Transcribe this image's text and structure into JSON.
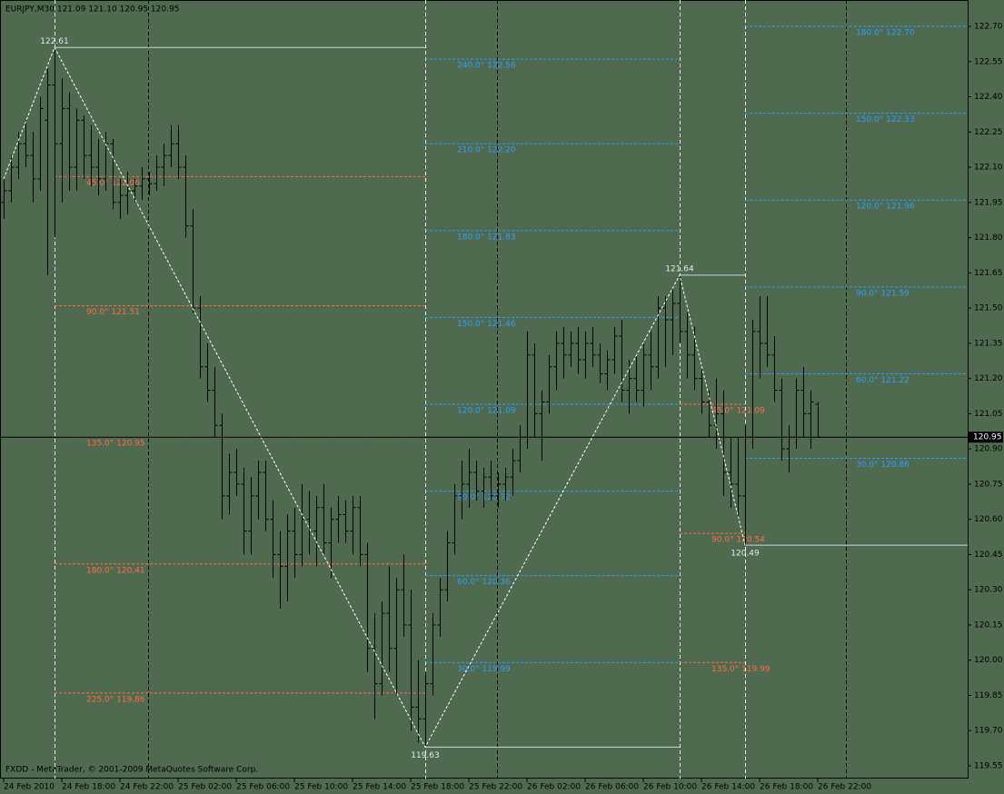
{
  "chart_data": {
    "type": "ohlc",
    "title": "EURJPY,M30  121.09 121.10 120.95 120.95",
    "footer": "FXDD - MetaTrader, © 2001-2009 MetaQuotes Software Corp.",
    "bar_color": "#000000",
    "categories": [
      "24 Feb 2010",
      null,
      null,
      null,
      null,
      null,
      null,
      null,
      "24 Feb 18:00",
      null,
      null,
      null,
      null,
      null,
      null,
      null,
      "24 Feb 22:00",
      null,
      null,
      null,
      null,
      null,
      null,
      null,
      "25 Feb 02:00",
      null,
      null,
      null,
      null,
      null,
      null,
      null,
      "25 Feb 06:00",
      null,
      null,
      null,
      null,
      null,
      null,
      null,
      "25 Feb 10:00",
      null,
      null,
      null,
      null,
      null,
      null,
      null,
      "25 Feb 14:00",
      null,
      null,
      null,
      null,
      null,
      null,
      null,
      "25 Feb 18:00",
      null,
      null,
      null,
      null,
      null,
      null,
      null,
      "25 Feb 22:00",
      null,
      null,
      null,
      null,
      null,
      null,
      null,
      "26 Feb 02:00",
      null,
      null,
      null,
      null,
      null,
      null,
      null,
      "26 Feb 06:00",
      null,
      null,
      null,
      null,
      null,
      null,
      null,
      "26 Feb 10:00",
      null,
      null,
      null,
      null,
      null,
      null,
      null,
      "26 Feb 14:00",
      null,
      null,
      null,
      null,
      null,
      null,
      null,
      "26 Feb 18:00",
      null,
      null,
      null,
      null,
      null,
      null,
      null,
      "26 Feb 22:00"
    ],
    "ohlc": [
      [
        121.95,
        122.05,
        121.88,
        122.0
      ],
      [
        122.0,
        122.15,
        121.95,
        122.1
      ],
      [
        122.1,
        122.25,
        122.05,
        122.2
      ],
      [
        122.2,
        122.3,
        122.1,
        122.15
      ],
      [
        122.15,
        122.25,
        121.95,
        122.05
      ],
      [
        122.05,
        122.4,
        122.0,
        122.35
      ],
      [
        122.3,
        122.52,
        121.64,
        122.45
      ],
      [
        122.45,
        122.61,
        121.8,
        122.2
      ],
      [
        122.2,
        122.48,
        121.95,
        122.35
      ],
      [
        122.35,
        122.42,
        122.0,
        122.1
      ],
      [
        122.1,
        122.35,
        122.0,
        122.3
      ],
      [
        122.3,
        122.32,
        122.05,
        122.15
      ],
      [
        122.15,
        122.28,
        122.02,
        122.1
      ],
      [
        122.1,
        122.22,
        121.98,
        122.05
      ],
      [
        122.05,
        122.25,
        122.0,
        122.2
      ],
      [
        122.2,
        122.22,
        121.92,
        121.95
      ],
      [
        121.95,
        122.05,
        121.88,
        121.98
      ],
      [
        121.98,
        122.08,
        121.9,
        122.0
      ],
      [
        122.0,
        122.05,
        121.95,
        122.02
      ],
      [
        122.02,
        122.1,
        121.96,
        122.05
      ],
      [
        122.05,
        122.08,
        121.98,
        122.03
      ],
      [
        122.03,
        122.15,
        122.0,
        122.1
      ],
      [
        122.1,
        122.2,
        122.02,
        122.15
      ],
      [
        122.15,
        122.28,
        122.1,
        122.2
      ],
      [
        122.2,
        122.28,
        122.05,
        122.1
      ],
      [
        122.1,
        122.15,
        121.8,
        121.85
      ],
      [
        121.85,
        121.92,
        121.48,
        121.5
      ],
      [
        121.5,
        121.55,
        121.2,
        121.25
      ],
      [
        121.25,
        121.35,
        121.1,
        121.15
      ],
      [
        121.15,
        121.25,
        120.95,
        121.0
      ],
      [
        121.0,
        121.05,
        120.6,
        120.7
      ],
      [
        120.7,
        120.88,
        120.62,
        120.8
      ],
      [
        120.8,
        120.9,
        120.7,
        120.75
      ],
      [
        120.75,
        120.82,
        120.45,
        120.55
      ],
      [
        120.55,
        120.78,
        120.45,
        120.7
      ],
      [
        120.7,
        120.85,
        120.6,
        120.8
      ],
      [
        120.8,
        120.85,
        120.55,
        120.6
      ],
      [
        120.6,
        120.68,
        120.35,
        120.45
      ],
      [
        120.45,
        120.55,
        120.22,
        120.4
      ],
      [
        120.4,
        120.62,
        120.25,
        120.55
      ],
      [
        120.55,
        120.65,
        120.35,
        120.45
      ],
      [
        120.45,
        120.75,
        120.4,
        120.6
      ],
      [
        120.6,
        120.72,
        120.45,
        120.55
      ],
      [
        120.55,
        120.7,
        120.4,
        120.65
      ],
      [
        120.65,
        120.75,
        120.45,
        120.5
      ],
      [
        120.5,
        120.65,
        120.35,
        120.6
      ],
      [
        120.6,
        120.7,
        120.5,
        120.62
      ],
      [
        120.62,
        120.68,
        120.5,
        120.55
      ],
      [
        120.55,
        120.7,
        120.45,
        120.65
      ],
      [
        120.65,
        120.7,
        120.4,
        120.45
      ],
      [
        120.45,
        120.5,
        119.95,
        120.05
      ],
      [
        120.05,
        120.2,
        119.75,
        119.9
      ],
      [
        119.9,
        120.25,
        119.85,
        120.2
      ],
      [
        120.2,
        120.4,
        119.95,
        120.05
      ],
      [
        120.05,
        120.35,
        119.85,
        120.3
      ],
      [
        120.3,
        120.45,
        120.1,
        120.15
      ],
      [
        120.15,
        120.3,
        119.7,
        119.8
      ],
      [
        119.8,
        120.0,
        119.65,
        119.75
      ],
      [
        119.75,
        119.95,
        119.63,
        119.9
      ],
      [
        119.9,
        120.2,
        119.85,
        120.15
      ],
      [
        120.15,
        120.35,
        120.1,
        120.3
      ],
      [
        120.3,
        120.55,
        120.25,
        120.5
      ],
      [
        120.5,
        120.75,
        120.45,
        120.7
      ],
      [
        120.7,
        120.85,
        120.6,
        120.75
      ],
      [
        120.75,
        120.9,
        120.65,
        120.8
      ],
      [
        120.8,
        120.85,
        120.68,
        120.72
      ],
      [
        120.72,
        120.82,
        120.65,
        120.78
      ],
      [
        120.78,
        120.85,
        120.68,
        120.7
      ],
      [
        120.7,
        120.8,
        120.65,
        120.75
      ],
      [
        120.75,
        120.82,
        120.68,
        120.78
      ],
      [
        120.78,
        120.9,
        120.7,
        120.85
      ],
      [
        120.85,
        121.0,
        120.8,
        120.95
      ],
      [
        120.95,
        121.4,
        120.9,
        121.3
      ],
      [
        121.3,
        121.35,
        120.95,
        121.05
      ],
      [
        121.05,
        121.15,
        120.85,
        121.1
      ],
      [
        121.1,
        121.3,
        121.05,
        121.25
      ],
      [
        121.25,
        121.4,
        121.15,
        121.35
      ],
      [
        121.35,
        121.42,
        121.2,
        121.3
      ],
      [
        121.3,
        121.4,
        121.25,
        121.35
      ],
      [
        121.35,
        121.42,
        121.22,
        121.28
      ],
      [
        121.28,
        121.4,
        121.2,
        121.35
      ],
      [
        121.35,
        121.42,
        121.25,
        121.3
      ],
      [
        121.3,
        121.35,
        121.18,
        121.22
      ],
      [
        121.22,
        121.32,
        121.15,
        121.28
      ],
      [
        121.28,
        121.42,
        121.22,
        121.38
      ],
      [
        121.38,
        121.45,
        121.1,
        121.15
      ],
      [
        121.15,
        121.28,
        121.05,
        121.2
      ],
      [
        121.2,
        121.3,
        121.1,
        121.15
      ],
      [
        121.15,
        121.35,
        121.08,
        121.3
      ],
      [
        121.3,
        121.4,
        121.15,
        121.25
      ],
      [
        121.25,
        121.55,
        121.2,
        121.5
      ],
      [
        121.5,
        121.55,
        121.25,
        121.45
      ],
      [
        121.45,
        121.58,
        121.3,
        121.52
      ],
      [
        121.52,
        121.64,
        121.35,
        121.4
      ],
      [
        121.4,
        121.48,
        121.2,
        121.3
      ],
      [
        121.3,
        121.42,
        121.15,
        121.2
      ],
      [
        121.2,
        121.25,
        121.05,
        121.1
      ],
      [
        121.1,
        121.15,
        120.95,
        121.0
      ],
      [
        121.0,
        121.2,
        120.9,
        121.05
      ],
      [
        121.05,
        121.15,
        120.7,
        120.8
      ],
      [
        120.8,
        120.95,
        120.65,
        120.75
      ],
      [
        120.75,
        120.95,
        120.6,
        120.7
      ],
      [
        120.7,
        121.0,
        120.49,
        120.95
      ],
      [
        120.95,
        121.45,
        120.9,
        121.4
      ],
      [
        121.4,
        121.55,
        121.2,
        121.35
      ],
      [
        121.35,
        121.55,
        121.25,
        121.3
      ],
      [
        121.3,
        121.38,
        121.1,
        121.15
      ],
      [
        121.15,
        121.2,
        120.85,
        120.9
      ],
      [
        120.9,
        121.0,
        120.8,
        120.95
      ],
      [
        120.95,
        121.2,
        120.9,
        121.15
      ],
      [
        121.15,
        121.25,
        120.95,
        121.05
      ],
      [
        121.05,
        121.15,
        120.9,
        121.1
      ],
      [
        121.09,
        121.1,
        120.95,
        120.95
      ]
    ],
    "ylim": [
      119.55,
      122.7
    ],
    "yticks": [
      {
        "value": 122.7,
        "label": "122.70"
      },
      122.55,
      {
        "value": 122.4,
        "label": "122.40"
      },
      122.25,
      {
        "value": 122.1,
        "label": "122.10"
      },
      121.95,
      {
        "value": 121.8,
        "label": "121.80"
      },
      121.65,
      {
        "value": 121.5,
        "label": "121.50"
      },
      121.35,
      {
        "value": 121.2,
        "label": "121.20"
      },
      121.05,
      {
        "value": 120.9,
        "label": "120.90"
      },
      120.75,
      {
        "value": 120.6,
        "label": "120.60"
      },
      120.45,
      {
        "value": 120.3,
        "label": "120.30"
      },
      120.15,
      {
        "value": 120.0,
        "label": "120.00"
      },
      119.85,
      {
        "value": 119.7,
        "label": "119.70"
      },
      119.55
    ],
    "current_price": 120.95,
    "zigzag_color": "#ffffff",
    "pivots": [
      {
        "bar": 0,
        "value": 122.05
      },
      {
        "bar": 7,
        "value": 122.61,
        "level_color": "#ff6a4d",
        "levels": [
          {
            "label": "45.0° 122.06",
            "value": 122.06
          },
          {
            "label": "90.0° 121.51",
            "value": 121.51
          },
          {
            "label": "135.0° 120.95",
            "value": 120.95
          },
          {
            "label": "180.0° 120.41",
            "value": 120.41
          },
          {
            "label": "225.0° 119.86",
            "value": 119.86
          }
        ]
      },
      {
        "bar": 58,
        "value": 119.63,
        "level_color": "#2f9cff",
        "levels": [
          {
            "label": "30.0° 119.99",
            "value": 119.99
          },
          {
            "label": "60.0° 120.36",
            "value": 120.36
          },
          {
            "label": "90.0° 120.72",
            "value": 120.72
          },
          {
            "label": "120.0° 121.09",
            "value": 121.09
          },
          {
            "label": "150.0° 121.46",
            "value": 121.46
          },
          {
            "label": "180.0° 121.83",
            "value": 121.83
          },
          {
            "label": "210.0° 122.20",
            "value": 122.2
          },
          {
            "label": "240.0° 122.56",
            "value": 122.56
          }
        ]
      },
      {
        "bar": 93,
        "value": 121.64,
        "level_color": "#ff6a4d",
        "levels": [
          {
            "label": "45.0° 121.09",
            "value": 121.09
          },
          {
            "label": "90.0° 120.54",
            "value": 120.54
          },
          {
            "label": "135.0° 119.99",
            "value": 119.99
          }
        ]
      },
      {
        "bar": 102,
        "value": 120.49,
        "level_color": "#2f9cff",
        "levels": [
          {
            "label": "30.0° 120.86",
            "value": 120.86
          },
          {
            "label": "60.0° 121.22",
            "value": 121.22
          },
          {
            "label": "90.0° 121.59",
            "value": 121.59
          },
          {
            "label": "120.0° 121.96",
            "value": 121.96
          },
          {
            "label": "150.0° 122.33",
            "value": 122.33
          },
          {
            "label": "180.0° 122.70",
            "value": 122.7
          }
        ]
      }
    ]
  }
}
